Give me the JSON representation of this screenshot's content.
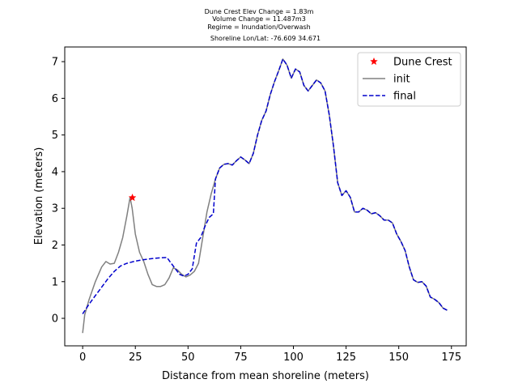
{
  "chart_data": {
    "type": "line",
    "title_lines": [
      "Dune Crest Elev Change = 1.83m",
      "Volume Change = 11.487m3",
      "Regime = Inundation/Overwash",
      "Shoreline Lon/Lat: -76.609 34.671"
    ],
    "xlabel": "Distance from mean shoreline (meters)",
    "ylabel": "Elevation (meters)",
    "xlim": [
      -8.5,
      182
    ],
    "ylim": [
      -0.75,
      7.4
    ],
    "xticks": [
      0,
      25,
      50,
      75,
      100,
      125,
      150,
      175
    ],
    "yticks": [
      0,
      1,
      2,
      3,
      4,
      5,
      6,
      7
    ],
    "grid": false,
    "legend_position": "top-right",
    "series": [
      {
        "name": "init",
        "color": "#808080",
        "style": "solid",
        "points": [
          [
            0,
            -0.4
          ],
          [
            1,
            0.1
          ],
          [
            3,
            0.5
          ],
          [
            6,
            1.0
          ],
          [
            9,
            1.4
          ],
          [
            11,
            1.55
          ],
          [
            13,
            1.48
          ],
          [
            15,
            1.5
          ],
          [
            17,
            1.8
          ],
          [
            19,
            2.2
          ],
          [
            21,
            2.8
          ],
          [
            22.5,
            3.3
          ],
          [
            23.5,
            3.0
          ],
          [
            25,
            2.3
          ],
          [
            27,
            1.8
          ],
          [
            29,
            1.55
          ],
          [
            31,
            1.2
          ],
          [
            33,
            0.92
          ],
          [
            35,
            0.87
          ],
          [
            37,
            0.87
          ],
          [
            39,
            0.92
          ],
          [
            41,
            1.1
          ],
          [
            43,
            1.38
          ],
          [
            45,
            1.32
          ],
          [
            47,
            1.2
          ],
          [
            49,
            1.13
          ],
          [
            51,
            1.18
          ],
          [
            53,
            1.28
          ],
          [
            55,
            1.5
          ],
          [
            57,
            2.2
          ],
          [
            59,
            2.9
          ],
          [
            61,
            3.4
          ],
          [
            63,
            3.8
          ],
          [
            65,
            4.1
          ],
          [
            67,
            4.2
          ],
          [
            69,
            4.22
          ],
          [
            71,
            4.18
          ],
          [
            73,
            4.3
          ],
          [
            75,
            4.4
          ],
          [
            77,
            4.32
          ],
          [
            79,
            4.22
          ],
          [
            81,
            4.5
          ],
          [
            83,
            5.0
          ],
          [
            85,
            5.4
          ],
          [
            87,
            5.65
          ],
          [
            89,
            6.1
          ],
          [
            91,
            6.45
          ],
          [
            93,
            6.75
          ],
          [
            95,
            7.07
          ],
          [
            97,
            6.9
          ],
          [
            99,
            6.55
          ],
          [
            101,
            6.8
          ],
          [
            103,
            6.72
          ],
          [
            105,
            6.35
          ],
          [
            107,
            6.2
          ],
          [
            109,
            6.35
          ],
          [
            111,
            6.5
          ],
          [
            113,
            6.42
          ],
          [
            115,
            6.2
          ],
          [
            117,
            5.55
          ],
          [
            119,
            4.7
          ],
          [
            121,
            3.7
          ],
          [
            123,
            3.35
          ],
          [
            125,
            3.48
          ],
          [
            127,
            3.3
          ],
          [
            129,
            2.9
          ],
          [
            131,
            2.9
          ],
          [
            133,
            3.0
          ],
          [
            135,
            2.95
          ],
          [
            137,
            2.85
          ],
          [
            139,
            2.88
          ],
          [
            141,
            2.8
          ],
          [
            143,
            2.68
          ],
          [
            145,
            2.68
          ],
          [
            147,
            2.6
          ],
          [
            149,
            2.3
          ],
          [
            151,
            2.1
          ],
          [
            153,
            1.85
          ],
          [
            155,
            1.4
          ],
          [
            157,
            1.05
          ],
          [
            159,
            0.98
          ],
          [
            161,
            1.0
          ],
          [
            163,
            0.88
          ],
          [
            165,
            0.58
          ],
          [
            167,
            0.52
          ],
          [
            169,
            0.43
          ],
          [
            171,
            0.28
          ],
          [
            173,
            0.22
          ]
        ]
      },
      {
        "name": "final",
        "color": "#0000cc",
        "style": "dashed",
        "points": [
          [
            0,
            0.12
          ],
          [
            3,
            0.38
          ],
          [
            6,
            0.62
          ],
          [
            9,
            0.85
          ],
          [
            12,
            1.08
          ],
          [
            15,
            1.28
          ],
          [
            18,
            1.43
          ],
          [
            21,
            1.5
          ],
          [
            25,
            1.56
          ],
          [
            29,
            1.6
          ],
          [
            33,
            1.63
          ],
          [
            37,
            1.65
          ],
          [
            40,
            1.66
          ],
          [
            42,
            1.5
          ],
          [
            44,
            1.35
          ],
          [
            46,
            1.2
          ],
          [
            48,
            1.15
          ],
          [
            50,
            1.2
          ],
          [
            52,
            1.35
          ],
          [
            54,
            2.05
          ],
          [
            56,
            2.2
          ],
          [
            58,
            2.5
          ],
          [
            60,
            2.75
          ],
          [
            62,
            2.85
          ],
          [
            63,
            3.8
          ],
          [
            65,
            4.1
          ],
          [
            67,
            4.2
          ],
          [
            69,
            4.22
          ],
          [
            71,
            4.18
          ],
          [
            73,
            4.3
          ],
          [
            75,
            4.4
          ],
          [
            77,
            4.32
          ],
          [
            79,
            4.22
          ],
          [
            81,
            4.5
          ],
          [
            83,
            5.0
          ],
          [
            85,
            5.4
          ],
          [
            87,
            5.65
          ],
          [
            89,
            6.1
          ],
          [
            91,
            6.45
          ],
          [
            93,
            6.75
          ],
          [
            95,
            7.07
          ],
          [
            97,
            6.9
          ],
          [
            99,
            6.55
          ],
          [
            101,
            6.8
          ],
          [
            103,
            6.72
          ],
          [
            105,
            6.35
          ],
          [
            107,
            6.2
          ],
          [
            109,
            6.35
          ],
          [
            111,
            6.5
          ],
          [
            113,
            6.42
          ],
          [
            115,
            6.2
          ],
          [
            117,
            5.55
          ],
          [
            119,
            4.7
          ],
          [
            121,
            3.7
          ],
          [
            123,
            3.35
          ],
          [
            125,
            3.48
          ],
          [
            127,
            3.3
          ],
          [
            129,
            2.9
          ],
          [
            131,
            2.9
          ],
          [
            133,
            3.0
          ],
          [
            135,
            2.95
          ],
          [
            137,
            2.85
          ],
          [
            139,
            2.88
          ],
          [
            141,
            2.8
          ],
          [
            143,
            2.68
          ],
          [
            145,
            2.68
          ],
          [
            147,
            2.6
          ],
          [
            149,
            2.3
          ],
          [
            151,
            2.1
          ],
          [
            153,
            1.85
          ],
          [
            155,
            1.4
          ],
          [
            157,
            1.05
          ],
          [
            159,
            0.98
          ],
          [
            161,
            1.0
          ],
          [
            163,
            0.88
          ],
          [
            165,
            0.58
          ],
          [
            167,
            0.52
          ],
          [
            169,
            0.43
          ],
          [
            171,
            0.28
          ],
          [
            173,
            0.22
          ]
        ]
      }
    ],
    "markers": [
      {
        "name": "Dune Crest",
        "color": "#ff0000",
        "symbol": "star",
        "x": 23.6,
        "y": 3.29
      }
    ]
  }
}
